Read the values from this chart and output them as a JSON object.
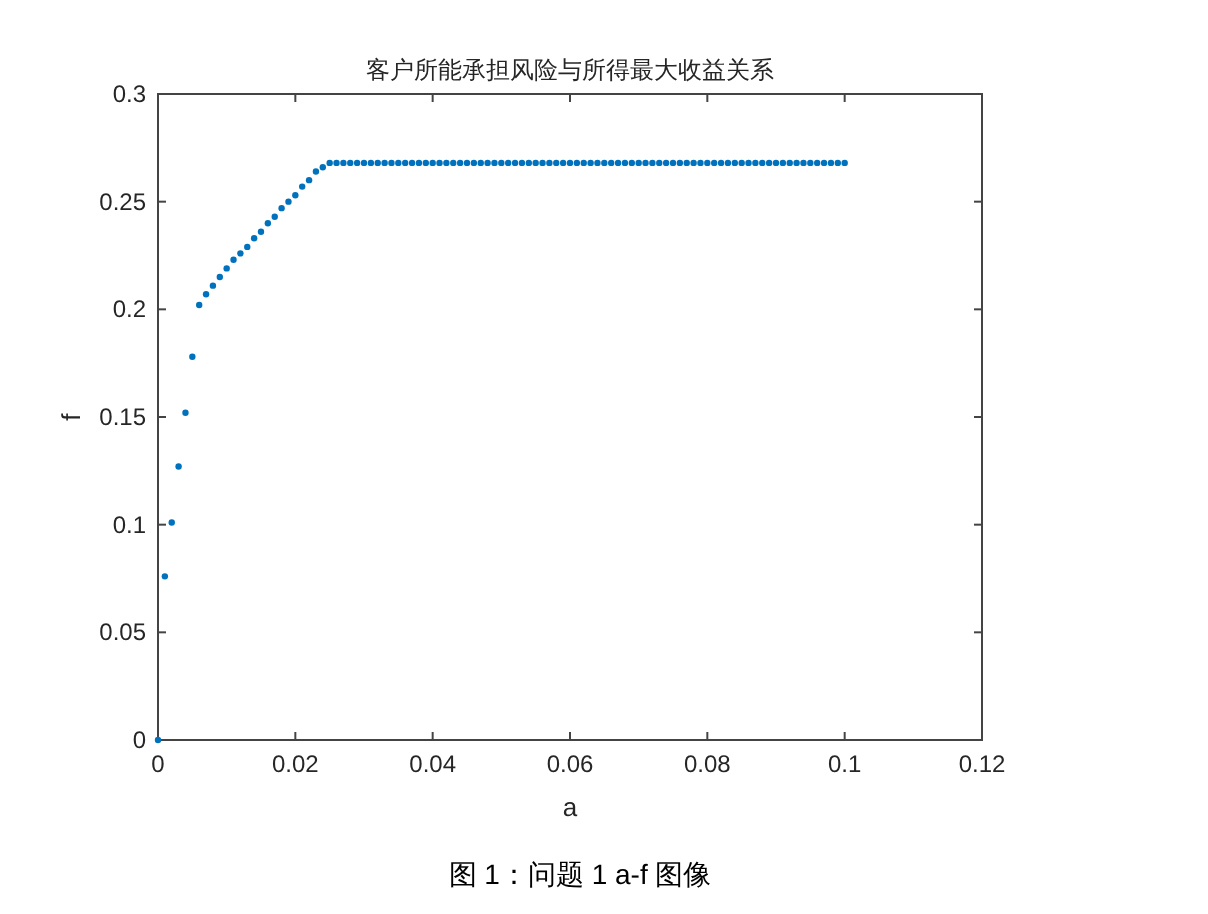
{
  "chart_data": {
    "type": "scatter",
    "title": "客户所能承担风险与所得最大收益关系",
    "xlabel": "a",
    "ylabel": "f",
    "annotations": [
      "图 1：问题 1 a-f 图像"
    ],
    "xlim": [
      0,
      0.12
    ],
    "xticks": [
      0,
      0.02,
      0.04,
      0.06,
      0.08,
      0.1,
      0.12
    ],
    "ylim": [
      0,
      0.3
    ],
    "yticks": [
      0,
      0.05,
      0.1,
      0.15,
      0.2,
      0.25,
      0.3
    ],
    "grid": false,
    "marker": "circle",
    "series": [
      {
        "color": "#0072bd",
        "x": [
          0,
          0.001,
          0.002,
          0.003,
          0.004,
          0.005,
          0.006,
          0.007,
          0.008,
          0.009,
          0.01,
          0.011,
          0.012,
          0.013,
          0.014,
          0.015,
          0.016,
          0.017,
          0.018,
          0.019,
          0.02,
          0.021,
          0.022,
          0.023,
          0.024,
          0.025,
          0.026,
          0.027,
          0.028,
          0.029,
          0.03,
          0.031,
          0.032,
          0.033,
          0.034,
          0.035,
          0.036,
          0.037,
          0.038,
          0.039,
          0.04,
          0.041,
          0.042,
          0.043,
          0.044,
          0.045,
          0.046,
          0.047,
          0.048,
          0.049,
          0.05,
          0.051,
          0.052,
          0.053,
          0.054,
          0.055,
          0.056,
          0.057,
          0.058,
          0.059,
          0.06,
          0.061,
          0.062,
          0.063,
          0.064,
          0.065,
          0.066,
          0.067,
          0.068,
          0.069,
          0.07,
          0.071,
          0.072,
          0.073,
          0.074,
          0.075,
          0.076,
          0.077,
          0.078,
          0.079,
          0.08,
          0.081,
          0.082,
          0.083,
          0.084,
          0.085,
          0.086,
          0.087,
          0.088,
          0.089,
          0.09,
          0.091,
          0.092,
          0.093,
          0.094,
          0.095,
          0.096,
          0.097,
          0.098,
          0.099,
          0.1
        ],
        "values": [
          0,
          0.076,
          0.101,
          0.127,
          0.152,
          0.178,
          0.202,
          0.207,
          0.211,
          0.215,
          0.219,
          0.223,
          0.226,
          0.229,
          0.233,
          0.236,
          0.24,
          0.243,
          0.247,
          0.25,
          0.253,
          0.257,
          0.26,
          0.264,
          0.266,
          0.268,
          0.268,
          0.268,
          0.268,
          0.268,
          0.268,
          0.268,
          0.268,
          0.268,
          0.268,
          0.268,
          0.268,
          0.268,
          0.268,
          0.268,
          0.268,
          0.268,
          0.268,
          0.268,
          0.268,
          0.268,
          0.268,
          0.268,
          0.268,
          0.268,
          0.268,
          0.268,
          0.268,
          0.268,
          0.268,
          0.268,
          0.268,
          0.268,
          0.268,
          0.268,
          0.268,
          0.268,
          0.268,
          0.268,
          0.268,
          0.268,
          0.268,
          0.268,
          0.268,
          0.268,
          0.268,
          0.268,
          0.268,
          0.268,
          0.268,
          0.268,
          0.268,
          0.268,
          0.268,
          0.268,
          0.268,
          0.268,
          0.268,
          0.268,
          0.268,
          0.268,
          0.268,
          0.268,
          0.268,
          0.268,
          0.268,
          0.268,
          0.268,
          0.268,
          0.268,
          0.268,
          0.268,
          0.268,
          0.268,
          0.268,
          0.268
        ]
      }
    ]
  }
}
